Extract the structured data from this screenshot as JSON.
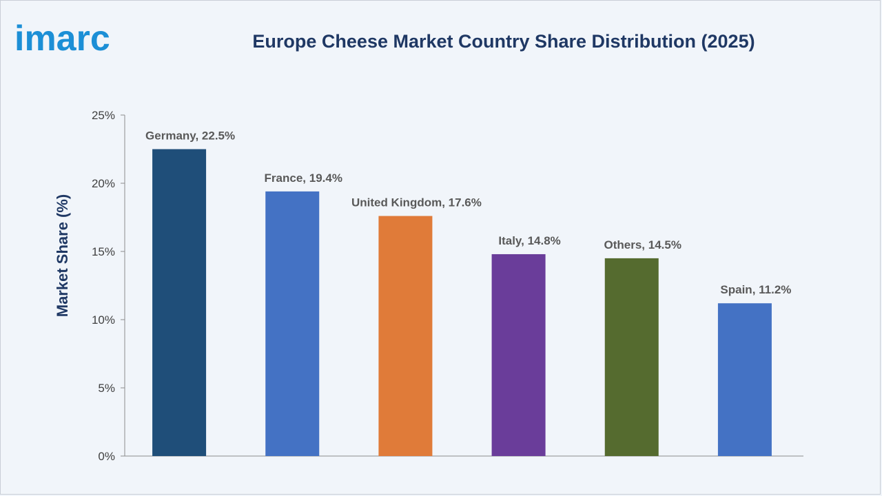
{
  "brand": {
    "logo_text": "imarc",
    "logo_color": "#1c8fd6"
  },
  "chart_data": {
    "type": "bar",
    "title": "Europe Cheese Market Country Share Distribution (2025)",
    "xlabel": "",
    "ylabel": "Market Share (%)",
    "ylim": [
      0,
      25
    ],
    "yticks": [
      0,
      5,
      10,
      15,
      20,
      25
    ],
    "ytick_labels": [
      "0%",
      "5%",
      "10%",
      "15%",
      "20%",
      "25%"
    ],
    "categories": [
      "Germany",
      "France",
      "United Kingdom",
      "Italy",
      "Others",
      "Spain"
    ],
    "values": [
      22.5,
      19.4,
      17.6,
      14.8,
      14.5,
      11.2
    ],
    "data_labels": [
      "Germany, 22.5%",
      "France, 19.4%",
      "United Kingdom, 17.6%",
      "Italy, 14.8%",
      "Others, 14.5%",
      "Spain, 11.2%"
    ],
    "colors": [
      "#1f4e79",
      "#4472c4",
      "#e07b39",
      "#6a3d9a",
      "#556b2f",
      "#4472c4"
    ],
    "grid": false,
    "legend": "none"
  }
}
